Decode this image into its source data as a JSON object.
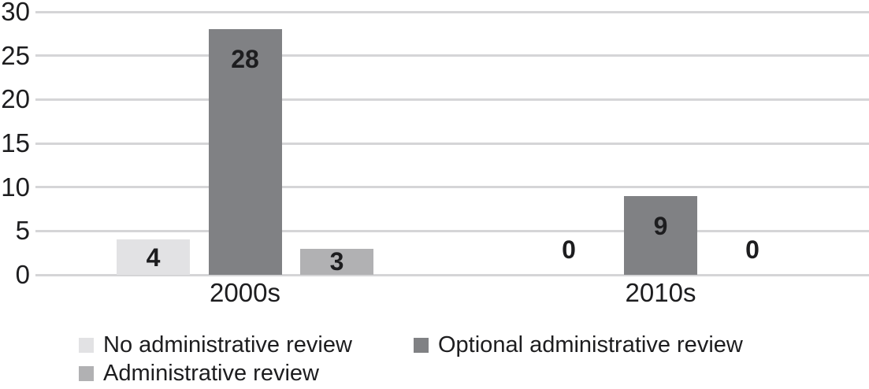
{
  "chart_data": {
    "type": "bar",
    "title": "",
    "xlabel": "",
    "ylabel": "",
    "categories": [
      "2000s",
      "2010s"
    ],
    "series": [
      {
        "name": "No administrative review",
        "color": "#e2e2e4",
        "values": [
          4,
          0
        ]
      },
      {
        "name": "Optional administrative review",
        "color": "#808184",
        "values": [
          28,
          9
        ]
      },
      {
        "name": "Administrative review",
        "color": "#b1b1b3",
        "values": [
          3,
          0
        ]
      }
    ],
    "yticks": [
      0,
      5,
      10,
      15,
      20,
      25,
      30
    ],
    "ylim": [
      0,
      30
    ],
    "grid": "horizontal",
    "legend_position": "bottom"
  },
  "colors": {
    "gridline": "#d5d5d7",
    "text": "#1d1d1f",
    "background": "#ffffff"
  }
}
